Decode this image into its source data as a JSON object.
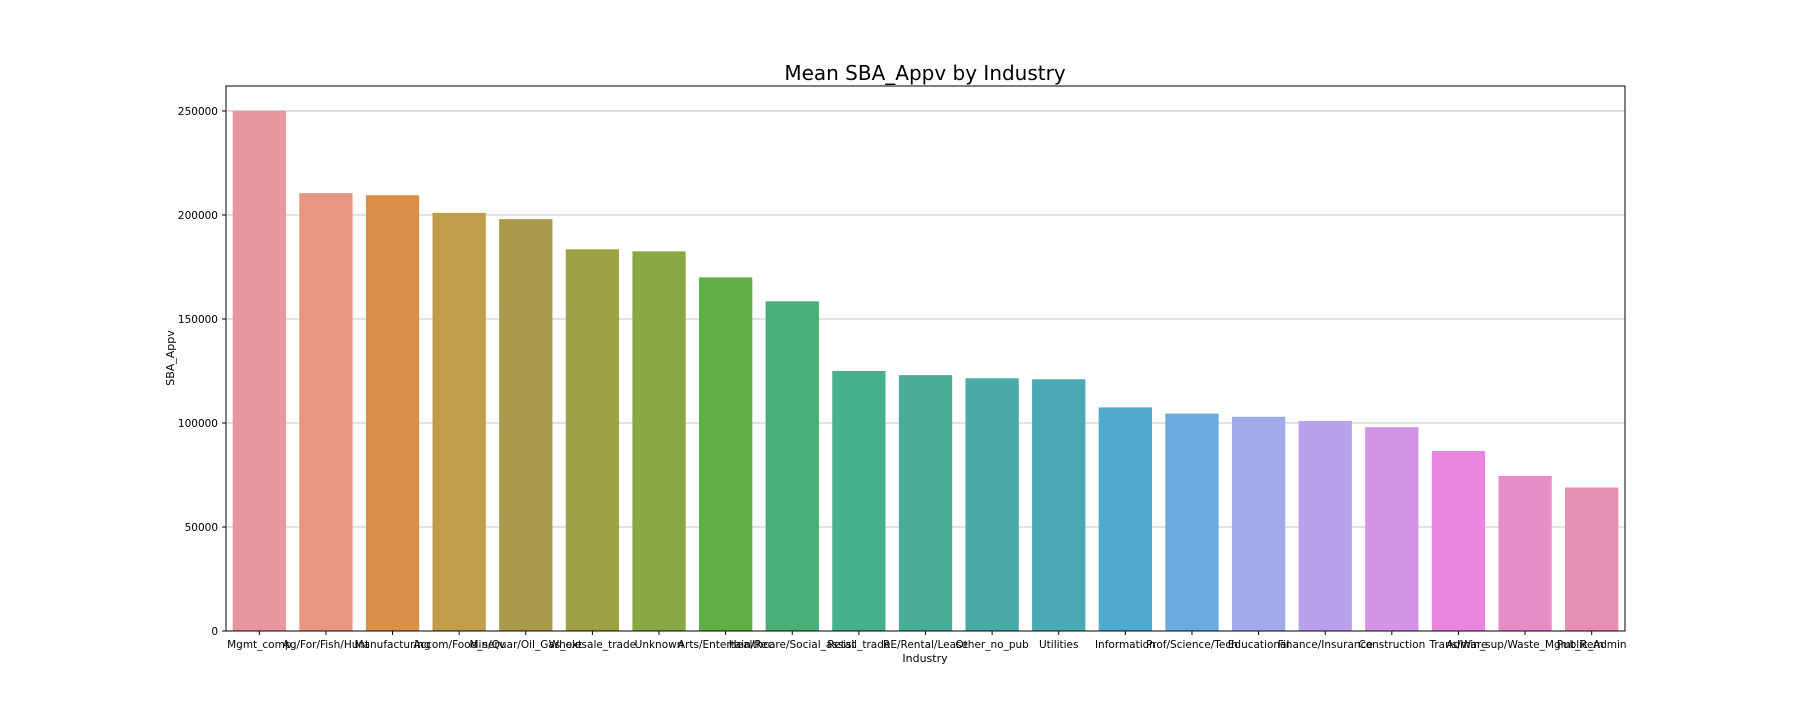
{
  "chart_data": {
    "type": "bar",
    "title": "Mean SBA_Appv by Industry",
    "xlabel": "Industry",
    "ylabel": "SBA_Appv",
    "ylim": [
      0,
      262000
    ],
    "yticks": [
      0,
      50000,
      100000,
      150000,
      200000,
      250000
    ],
    "grid": "horizontal",
    "categories": [
      "Mgmt_comp",
      "Ag/For/Fish/Hunt",
      "Manufacturing",
      "Accom/Food_serv",
      "Min/Quar/Oil_Gas_ext",
      "Wholesale_trade",
      "Unknown",
      "Arts/Entertain/Rec",
      "Healthcare/Social_assist",
      "Retail_trade",
      "RE/Rental/Lease",
      "Other_no_pub",
      "Utilities",
      "Information",
      "Prof/Science/Tech",
      "Educational",
      "Finance/Insurance",
      "Construction",
      "Trans/Ware",
      "Admin_sup/Waste_Mgmt_Rem",
      "Public_Admin"
    ],
    "values": [
      250000,
      210500,
      209500,
      201000,
      198000,
      183500,
      182500,
      170000,
      158500,
      125000,
      123000,
      121500,
      121000,
      107500,
      104500,
      103000,
      101000,
      98000,
      86500,
      74500,
      69000
    ],
    "colors": [
      "#e8969f",
      "#e79682",
      "#d89049",
      "#c19c4b",
      "#a9994b",
      "#9da244",
      "#88a846",
      "#5faf46",
      "#48af76",
      "#49b08e",
      "#49ad98",
      "#4aaaa5",
      "#4aa9b4",
      "#4faace",
      "#6baadf",
      "#a2abe9",
      "#b9a0ea",
      "#d493e6",
      "#e986dd",
      "#e68cc7",
      "#e78fb2"
    ]
  }
}
